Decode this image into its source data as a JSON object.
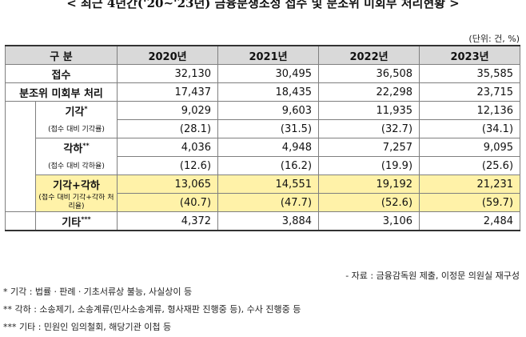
{
  "title": "< 최근 4년간('20~'23년) 금융분쟁조정 접수 및 분조위 미회부 처리현황 >",
  "unit": "(단위: 건, %)",
  "header": {
    "category": "구 분",
    "years": [
      "2020년",
      "2021년",
      "2022년",
      "2023년"
    ]
  },
  "rows": {
    "received": {
      "label": "접수",
      "values": [
        "32,130",
        "30,495",
        "36,508",
        "35,585"
      ]
    },
    "not_referred": {
      "label": "분조위 미회부 처리",
      "values": [
        "17,437",
        "18,435",
        "22,298",
        "23,715"
      ]
    },
    "dismissed": {
      "label": "기각",
      "mark": "*",
      "values": [
        "9,029",
        "9,603",
        "11,935",
        "12,136"
      ]
    },
    "dismissed_rate": {
      "label": "(접수 대비 기각률)",
      "values": [
        "(28.1)",
        "(31.5)",
        "(32.7)",
        "(34.1)"
      ]
    },
    "rejected": {
      "label": "각하",
      "mark": "**",
      "values": [
        "4,036",
        "4,948",
        "7,257",
        "9,095"
      ]
    },
    "rejected_rate": {
      "label": "(접수 대비 각하율)",
      "values": [
        "(12.6)",
        "(16.2)",
        "(19.9)",
        "(25.6)"
      ]
    },
    "combined": {
      "label": "기각+각하",
      "values": [
        "13,065",
        "14,551",
        "19,192",
        "21,231"
      ]
    },
    "combined_rate": {
      "label": "(접수 대비 기각+각하 처리율)",
      "values": [
        "(40.7)",
        "(47.7)",
        "(52.6)",
        "(59.7)"
      ]
    },
    "other": {
      "label": "기타",
      "mark": "***",
      "values": [
        "4,372",
        "3,884",
        "3,106",
        "2,484"
      ]
    }
  },
  "source": "- 자료 : 금융감독원 제출, 이정문 의원실 재구성",
  "notes": [
    "* 기각 : 법률ㆍ판례ㆍ기초서류상 불능, 사실상이 등",
    "** 각하 : 소송제기, 소송계류(민사소송계류, 형사재판 진행중 등), 수사 진행중 등",
    "*** 기타 : 민원인 임의철회, 해당기관 이첩 등"
  ],
  "colors": {
    "header_bg": "#d9d9d9",
    "highlight_bg": "#fff2a8"
  }
}
